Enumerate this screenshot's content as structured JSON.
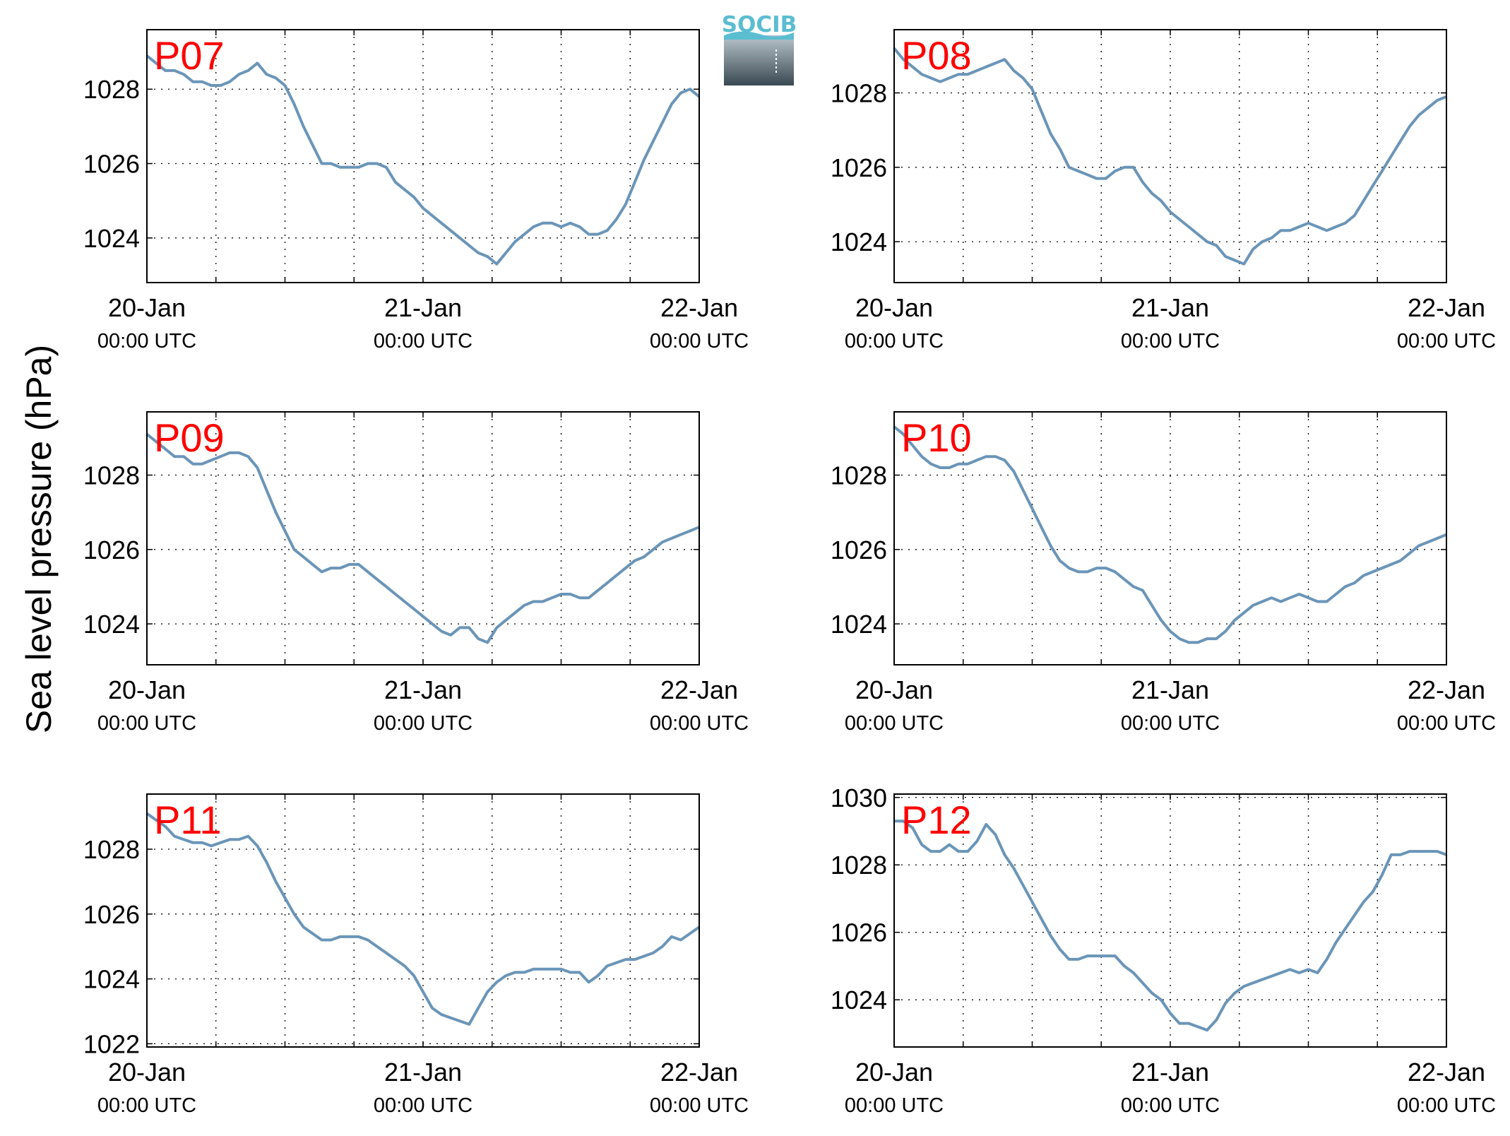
{
  "figure": {
    "ylabel": "Sea level pressure (hPa)",
    "logo_text": "SOCIB",
    "colors": {
      "line": "#6a95b8",
      "panel_label": "#ff0000",
      "logo_text": "#5bbdd0",
      "logo_top": "#b9c6cc",
      "logo_bottom": "#3a4852"
    }
  },
  "chart_data": [
    {
      "type": "line",
      "panel_label": "P07",
      "xlim": [
        0,
        48
      ],
      "ylim": [
        1022.8,
        1029.6
      ],
      "yticks": [
        1024,
        1026,
        1028
      ],
      "xtick_labels": [
        {
          "x": 0,
          "date": "20-Jan",
          "time": "00:00 UTC"
        },
        {
          "x": 24,
          "date": "21-Jan",
          "time": "00:00 UTC"
        },
        {
          "x": 48,
          "date": "22-Jan",
          "time": "00:00 UTC"
        }
      ],
      "grid": true,
      "series": [
        {
          "x": [
            0,
            0.8,
            1.6,
            2.4,
            3.2,
            4,
            4.8,
            5.6,
            6.4,
            7.2,
            8,
            8.8,
            9.6,
            10.4,
            11.2,
            12,
            12.8,
            13.6,
            14.4,
            15.2,
            16,
            16.8,
            17.6,
            18.4,
            19.2,
            20,
            20.8,
            21.6,
            22.4,
            23.2,
            24,
            24.8,
            25.6,
            26.4,
            27.2,
            28,
            28.8,
            29.6,
            30.4,
            31.2,
            32,
            32.8,
            33.6,
            34.4,
            35.2,
            36,
            36.8,
            37.6,
            38.4,
            39.2,
            40,
            40.8,
            41.6,
            42.4,
            43.2,
            44,
            44.8,
            45.6,
            46.4,
            47.2,
            48
          ],
          "y": [
            1028.9,
            1028.7,
            1028.5,
            1028.5,
            1028.4,
            1028.2,
            1028.2,
            1028.1,
            1028.1,
            1028.2,
            1028.4,
            1028.5,
            1028.7,
            1028.4,
            1028.3,
            1028.1,
            1027.6,
            1027.0,
            1026.5,
            1026.0,
            1026.0,
            1025.9,
            1025.9,
            1025.9,
            1026.0,
            1026.0,
            1025.9,
            1025.5,
            1025.3,
            1025.1,
            1024.8,
            1024.6,
            1024.4,
            1024.2,
            1024.0,
            1023.8,
            1023.6,
            1023.5,
            1023.3,
            1023.6,
            1023.9,
            1024.1,
            1024.3,
            1024.4,
            1024.4,
            1024.3,
            1024.4,
            1024.3,
            1024.1,
            1024.1,
            1024.2,
            1024.5,
            1024.9,
            1025.5,
            1026.1,
            1026.6,
            1027.1,
            1027.6,
            1027.9,
            1028.0,
            1027.8
          ]
        }
      ]
    },
    {
      "type": "line",
      "panel_label": "P08",
      "xlim": [
        0,
        48
      ],
      "ylim": [
        1022.9,
        1029.7
      ],
      "yticks": [
        1024,
        1026,
        1028
      ],
      "xtick_labels": [
        {
          "x": 0,
          "date": "20-Jan",
          "time": "00:00 UTC"
        },
        {
          "x": 24,
          "date": "21-Jan",
          "time": "00:00 UTC"
        },
        {
          "x": 48,
          "date": "22-Jan",
          "time": "00:00 UTC"
        }
      ],
      "grid": true,
      "series": [
        {
          "x": [
            0,
            0.8,
            1.6,
            2.4,
            3.2,
            4,
            4.8,
            5.6,
            6.4,
            7.2,
            8,
            8.8,
            9.6,
            10.4,
            11.2,
            12,
            12.8,
            13.6,
            14.4,
            15.2,
            16,
            16.8,
            17.6,
            18.4,
            19.2,
            20,
            20.8,
            21.6,
            22.4,
            23.2,
            24,
            24.8,
            25.6,
            26.4,
            27.2,
            28,
            28.8,
            29.6,
            30.4,
            31.2,
            32,
            32.8,
            33.6,
            34.4,
            35.2,
            36,
            36.8,
            37.6,
            38.4,
            39.2,
            40,
            40.8,
            41.6,
            42.4,
            43.2,
            44,
            44.8,
            45.6,
            46.4,
            47.2,
            48
          ],
          "y": [
            1029.2,
            1028.9,
            1028.7,
            1028.5,
            1028.4,
            1028.3,
            1028.4,
            1028.5,
            1028.5,
            1028.6,
            1028.7,
            1028.8,
            1028.9,
            1028.6,
            1028.4,
            1028.1,
            1027.5,
            1026.9,
            1026.5,
            1026.0,
            1025.9,
            1025.8,
            1025.7,
            1025.7,
            1025.9,
            1026.0,
            1026.0,
            1025.6,
            1025.3,
            1025.1,
            1024.8,
            1024.6,
            1024.4,
            1024.2,
            1024.0,
            1023.9,
            1023.6,
            1023.5,
            1023.4,
            1023.8,
            1024.0,
            1024.1,
            1024.3,
            1024.3,
            1024.4,
            1024.5,
            1024.4,
            1024.3,
            1024.4,
            1024.5,
            1024.7,
            1025.1,
            1025.5,
            1025.9,
            1026.3,
            1026.7,
            1027.1,
            1027.4,
            1027.6,
            1027.8,
            1027.9
          ]
        }
      ]
    },
    {
      "type": "line",
      "panel_label": "P09",
      "xlim": [
        0,
        48
      ],
      "ylim": [
        1022.9,
        1029.7
      ],
      "yticks": [
        1024,
        1026,
        1028
      ],
      "xtick_labels": [
        {
          "x": 0,
          "date": "20-Jan",
          "time": "00:00 UTC"
        },
        {
          "x": 24,
          "date": "21-Jan",
          "time": "00:00 UTC"
        },
        {
          "x": 48,
          "date": "22-Jan",
          "time": "00:00 UTC"
        }
      ],
      "grid": true,
      "series": [
        {
          "x": [
            0,
            0.8,
            1.6,
            2.4,
            3.2,
            4,
            4.8,
            5.6,
            6.4,
            7.2,
            8,
            8.8,
            9.6,
            10.4,
            11.2,
            12,
            12.8,
            13.6,
            14.4,
            15.2,
            16,
            16.8,
            17.6,
            18.4,
            19.2,
            20,
            20.8,
            21.6,
            22.4,
            23.2,
            24,
            24.8,
            25.6,
            26.4,
            27.2,
            28,
            28.8,
            29.6,
            30.4,
            31.2,
            32,
            32.8,
            33.6,
            34.4,
            35.2,
            36,
            36.8,
            37.6,
            38.4,
            39.2,
            40,
            40.8,
            41.6,
            42.4,
            43.2,
            44,
            44.8,
            45.6,
            46.4,
            47.2,
            48
          ],
          "y": [
            1029.1,
            1028.9,
            1028.7,
            1028.5,
            1028.5,
            1028.3,
            1028.3,
            1028.4,
            1028.5,
            1028.6,
            1028.6,
            1028.5,
            1028.2,
            1027.6,
            1027.0,
            1026.5,
            1026.0,
            1025.8,
            1025.6,
            1025.4,
            1025.5,
            1025.5,
            1025.6,
            1025.6,
            1025.4,
            1025.2,
            1025.0,
            1024.8,
            1024.6,
            1024.4,
            1024.2,
            1024.0,
            1023.8,
            1023.7,
            1023.9,
            1023.9,
            1023.6,
            1023.5,
            1023.9,
            1024.1,
            1024.3,
            1024.5,
            1024.6,
            1024.6,
            1024.7,
            1024.8,
            1024.8,
            1024.7,
            1024.7,
            1024.9,
            1025.1,
            1025.3,
            1025.5,
            1025.7,
            1025.8,
            1026.0,
            1026.2,
            1026.3,
            1026.4,
            1026.5,
            1026.6
          ]
        }
      ]
    },
    {
      "type": "line",
      "panel_label": "P10",
      "xlim": [
        0,
        48
      ],
      "ylim": [
        1022.9,
        1029.7
      ],
      "yticks": [
        1024,
        1026,
        1028
      ],
      "xtick_labels": [
        {
          "x": 0,
          "date": "20-Jan",
          "time": "00:00 UTC"
        },
        {
          "x": 24,
          "date": "21-Jan",
          "time": "00:00 UTC"
        },
        {
          "x": 48,
          "date": "22-Jan",
          "time": "00:00 UTC"
        }
      ],
      "grid": true,
      "series": [
        {
          "x": [
            0,
            0.8,
            1.6,
            2.4,
            3.2,
            4,
            4.8,
            5.6,
            6.4,
            7.2,
            8,
            8.8,
            9.6,
            10.4,
            11.2,
            12,
            12.8,
            13.6,
            14.4,
            15.2,
            16,
            16.8,
            17.6,
            18.4,
            19.2,
            20,
            20.8,
            21.6,
            22.4,
            23.2,
            24,
            24.8,
            25.6,
            26.4,
            27.2,
            28,
            28.8,
            29.6,
            30.4,
            31.2,
            32,
            32.8,
            33.6,
            34.4,
            35.2,
            36,
            36.8,
            37.6,
            38.4,
            39.2,
            40,
            40.8,
            41.6,
            42.4,
            43.2,
            44,
            44.8,
            45.6,
            46.4,
            47.2,
            48
          ],
          "y": [
            1029.3,
            1029.1,
            1028.8,
            1028.5,
            1028.3,
            1028.2,
            1028.2,
            1028.3,
            1028.3,
            1028.4,
            1028.5,
            1028.5,
            1028.4,
            1028.1,
            1027.6,
            1027.1,
            1026.6,
            1026.1,
            1025.7,
            1025.5,
            1025.4,
            1025.4,
            1025.5,
            1025.5,
            1025.4,
            1025.2,
            1025.0,
            1024.9,
            1024.5,
            1024.1,
            1023.8,
            1023.6,
            1023.5,
            1023.5,
            1023.6,
            1023.6,
            1023.8,
            1024.1,
            1024.3,
            1024.5,
            1024.6,
            1024.7,
            1024.6,
            1024.7,
            1024.8,
            1024.7,
            1024.6,
            1024.6,
            1024.8,
            1025.0,
            1025.1,
            1025.3,
            1025.4,
            1025.5,
            1025.6,
            1025.7,
            1025.9,
            1026.1,
            1026.2,
            1026.3,
            1026.4
          ]
        }
      ]
    },
    {
      "type": "line",
      "panel_label": "P11",
      "xlim": [
        0,
        48
      ],
      "ylim": [
        1021.9,
        1029.7
      ],
      "yticks": [
        1022,
        1024,
        1026,
        1028
      ],
      "xtick_labels": [
        {
          "x": 0,
          "date": "20-Jan",
          "time": "00:00 UTC"
        },
        {
          "x": 24,
          "date": "21-Jan",
          "time": "00:00 UTC"
        },
        {
          "x": 48,
          "date": "22-Jan",
          "time": "00:00 UTC"
        }
      ],
      "grid": true,
      "series": [
        {
          "x": [
            0,
            0.8,
            1.6,
            2.4,
            3.2,
            4,
            4.8,
            5.6,
            6.4,
            7.2,
            8,
            8.8,
            9.6,
            10.4,
            11.2,
            12,
            12.8,
            13.6,
            14.4,
            15.2,
            16,
            16.8,
            17.6,
            18.4,
            19.2,
            20,
            20.8,
            21.6,
            22.4,
            23.2,
            24,
            24.8,
            25.6,
            26.4,
            27.2,
            28,
            28.8,
            29.6,
            30.4,
            31.2,
            32,
            32.8,
            33.6,
            34.4,
            35.2,
            36,
            36.8,
            37.6,
            38.4,
            39.2,
            40,
            40.8,
            41.6,
            42.4,
            43.2,
            44,
            44.8,
            45.6,
            46.4,
            47.2,
            48
          ],
          "y": [
            1029.1,
            1028.9,
            1028.7,
            1028.4,
            1028.3,
            1028.2,
            1028.2,
            1028.1,
            1028.2,
            1028.3,
            1028.3,
            1028.4,
            1028.1,
            1027.6,
            1027.0,
            1026.5,
            1026.0,
            1025.6,
            1025.4,
            1025.2,
            1025.2,
            1025.3,
            1025.3,
            1025.3,
            1025.2,
            1025.0,
            1024.8,
            1024.6,
            1024.4,
            1024.1,
            1023.6,
            1023.1,
            1022.9,
            1022.8,
            1022.7,
            1022.6,
            1023.1,
            1023.6,
            1023.9,
            1024.1,
            1024.2,
            1024.2,
            1024.3,
            1024.3,
            1024.3,
            1024.3,
            1024.2,
            1024.2,
            1023.9,
            1024.1,
            1024.4,
            1024.5,
            1024.6,
            1024.6,
            1024.7,
            1024.8,
            1025.0,
            1025.3,
            1025.2,
            1025.4,
            1025.6
          ]
        }
      ]
    },
    {
      "type": "line",
      "panel_label": "P12",
      "xlim": [
        0,
        48
      ],
      "ylim": [
        1022.6,
        1030.1
      ],
      "yticks": [
        1024,
        1026,
        1028,
        1030
      ],
      "xtick_labels": [
        {
          "x": 0,
          "date": "20-Jan",
          "time": "00:00 UTC"
        },
        {
          "x": 24,
          "date": "21-Jan",
          "time": "00:00 UTC"
        },
        {
          "x": 48,
          "date": "22-Jan",
          "time": "00:00 UTC"
        }
      ],
      "grid": true,
      "series": [
        {
          "x": [
            0,
            0.8,
            1.6,
            2.4,
            3.2,
            4,
            4.8,
            5.6,
            6.4,
            7.2,
            8,
            8.8,
            9.6,
            10.4,
            11.2,
            12,
            12.8,
            13.6,
            14.4,
            15.2,
            16,
            16.8,
            17.6,
            18.4,
            19.2,
            20,
            20.8,
            21.6,
            22.4,
            23.2,
            24,
            24.8,
            25.6,
            26.4,
            27.2,
            28,
            28.8,
            29.6,
            30.4,
            31.2,
            32,
            32.8,
            33.6,
            34.4,
            35.2,
            36,
            36.8,
            37.6,
            38.4,
            39.2,
            40,
            40.8,
            41.6,
            42.4,
            43.2,
            44,
            44.8,
            45.6,
            46.4,
            47.2,
            48
          ],
          "y": [
            1029.3,
            1029.3,
            1029.1,
            1028.6,
            1028.4,
            1028.4,
            1028.6,
            1028.4,
            1028.4,
            1028.7,
            1029.2,
            1028.9,
            1028.3,
            1027.9,
            1027.4,
            1026.9,
            1026.4,
            1025.9,
            1025.5,
            1025.2,
            1025.2,
            1025.3,
            1025.3,
            1025.3,
            1025.3,
            1025.0,
            1024.8,
            1024.5,
            1024.2,
            1024.0,
            1023.6,
            1023.3,
            1023.3,
            1023.2,
            1023.1,
            1023.4,
            1023.9,
            1024.2,
            1024.4,
            1024.5,
            1024.6,
            1024.7,
            1024.8,
            1024.9,
            1024.8,
            1024.9,
            1024.8,
            1025.2,
            1025.7,
            1026.1,
            1026.5,
            1026.9,
            1027.2,
            1027.7,
            1028.3,
            1028.3,
            1028.4,
            1028.4,
            1028.4,
            1028.4,
            1028.3
          ]
        }
      ]
    }
  ]
}
